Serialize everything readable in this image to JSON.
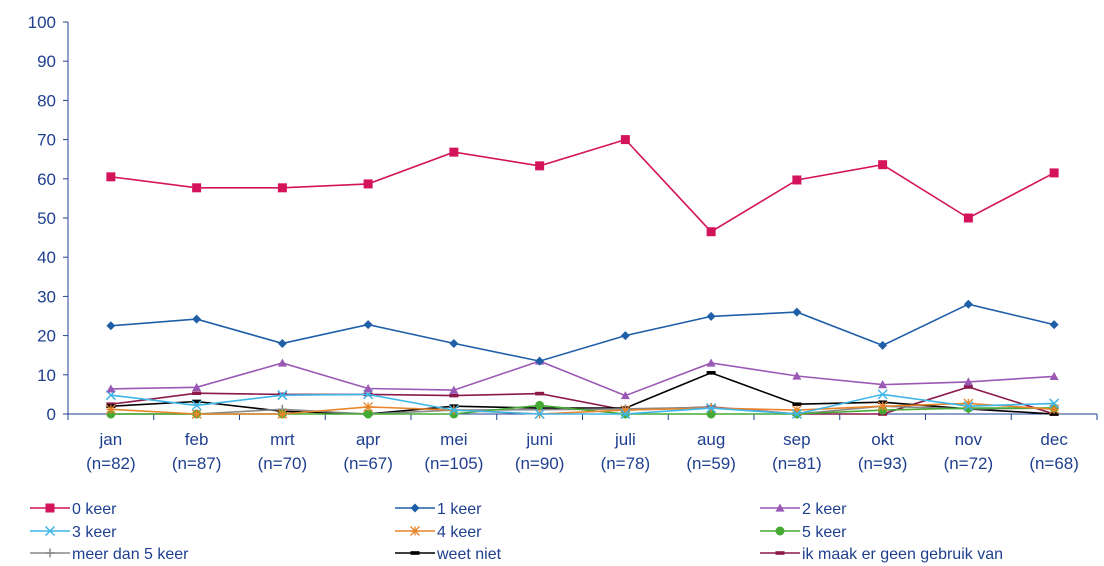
{
  "chart_data": {
    "type": "line",
    "categories": [
      [
        "jan",
        "(n=82)"
      ],
      [
        "feb",
        "(n=87)"
      ],
      [
        "mrt",
        "(n=70)"
      ],
      [
        "apr",
        "(n=67)"
      ],
      [
        "mei",
        "(n=105)"
      ],
      [
        "juni",
        "(n=90)"
      ],
      [
        "juli",
        "(n=78)"
      ],
      [
        "aug",
        "(n=59)"
      ],
      [
        "sep",
        "(n=81)"
      ],
      [
        "okt",
        "(n=93)"
      ],
      [
        "nov",
        "(n=72)"
      ],
      [
        "dec",
        "(n=68)"
      ]
    ],
    "ylim": [
      0,
      100
    ],
    "yticks": [
      0,
      10,
      20,
      30,
      40,
      50,
      60,
      70,
      80,
      90,
      100
    ],
    "grid": false,
    "legend_position": "bottom",
    "series": [
      {
        "name": "0 keer",
        "color": "#d4145a",
        "marker": "square",
        "values": [
          60.5,
          57.7,
          57.7,
          58.7,
          66.8,
          63.3,
          70.0,
          46.5,
          59.7,
          63.6,
          50.0,
          61.5
        ]
      },
      {
        "name": "1 keer",
        "color": "#1f5fa8",
        "marker": "diamond",
        "values": [
          22.5,
          24.2,
          18.0,
          22.8,
          18.0,
          13.5,
          20.0,
          24.9,
          26.0,
          17.5,
          28.0,
          22.8
        ]
      },
      {
        "name": "2 keer",
        "color": "#9b59b6",
        "marker": "triangle",
        "values": [
          6.4,
          6.8,
          13.0,
          6.5,
          6.1,
          13.5,
          4.7,
          13.0,
          9.7,
          7.5,
          8.2,
          9.6
        ]
      },
      {
        "name": "3 keer",
        "color": "#3fb6e8",
        "marker": "x",
        "values": [
          4.8,
          2.2,
          4.8,
          5.0,
          1.0,
          0.0,
          0.0,
          1.5,
          0.0,
          5.0,
          2.0,
          2.7
        ]
      },
      {
        "name": "4 keer",
        "color": "#e8842a",
        "marker": "star",
        "values": [
          1.2,
          0.0,
          0.0,
          1.8,
          1.0,
          0.0,
          1.0,
          1.5,
          1.0,
          2.0,
          2.7,
          1.2
        ]
      },
      {
        "name": "5 keer",
        "color": "#44aa33",
        "marker": "circle",
        "values": [
          0.0,
          0.0,
          0.0,
          0.0,
          0.0,
          2.2,
          0.0,
          0.0,
          0.0,
          1.0,
          1.5,
          1.5
        ]
      },
      {
        "name": "meer dan 5 keer",
        "color": "#888888",
        "marker": "plus",
        "values": [
          0.0,
          0.0,
          1.2,
          0.0,
          1.0,
          1.1,
          1.3,
          1.7,
          0.0,
          2.0,
          1.3,
          1.5
        ]
      },
      {
        "name": "weet niet",
        "color": "#000000",
        "marker": "dash",
        "values": [
          2.0,
          3.2,
          0.7,
          0.0,
          2.0,
          1.5,
          1.5,
          10.5,
          2.5,
          3.0,
          1.3,
          0.0
        ]
      },
      {
        "name": "ik maak er geen gebruik van",
        "color": "#8b1a4a",
        "marker": "dash",
        "values": [
          2.5,
          5.3,
          5.0,
          5.0,
          4.7,
          5.2,
          1.0,
          1.8,
          0.0,
          0.0,
          6.9,
          0.0
        ]
      }
    ]
  }
}
